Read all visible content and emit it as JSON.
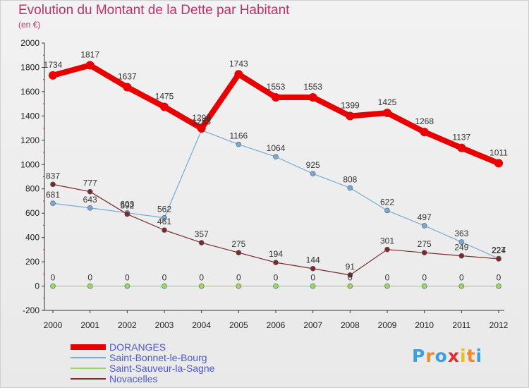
{
  "title": "Evolution du Montant de la Dette par Habitant",
  "subtitle": "(en €)",
  "logo": {
    "text": "Proxiti",
    "letter_colors": [
      "#3aa0e0",
      "#f08a2a",
      "#3aa0e0",
      "#e03030",
      "#e8c01a",
      "#f08a2a",
      "#3aa0e0"
    ]
  },
  "chart_data": {
    "type": "line",
    "categories": [
      "2000",
      "2001",
      "2002",
      "2003",
      "2004",
      "2005",
      "2006",
      "2007",
      "2008",
      "2009",
      "2010",
      "2011",
      "2012"
    ],
    "ylim": [
      -200,
      2000
    ],
    "yticks": [
      -200,
      0,
      200,
      400,
      600,
      800,
      1000,
      1200,
      1400,
      1600,
      1800,
      2000
    ],
    "grid": false,
    "legend_position": "bottom-left",
    "series": [
      {
        "name": "DORANGES",
        "color": "#e80000",
        "values": [
          1734,
          1817,
          1637,
          1475,
          1298,
          1743,
          1553,
          1553,
          1399,
          1425,
          1268,
          1137,
          1011
        ]
      },
      {
        "name": "Saint-Bonnet-le-Bourg",
        "color": "#76aad8",
        "values": [
          681,
          643,
          603,
          562,
          1283,
          1166,
          1064,
          925,
          808,
          622,
          497,
          363,
          227
        ]
      },
      {
        "name": "Saint-Sauveur-la-Sagne",
        "color": "#90de5c",
        "values": [
          0,
          0,
          0,
          0,
          0,
          0,
          0,
          0,
          0,
          0,
          0,
          0,
          0
        ]
      },
      {
        "name": "Novacelles",
        "color": "#7a2a2a",
        "values": [
          837,
          777,
          592,
          461,
          357,
          275,
          194,
          144,
          91,
          301,
          275,
          249,
          224
        ]
      }
    ]
  }
}
